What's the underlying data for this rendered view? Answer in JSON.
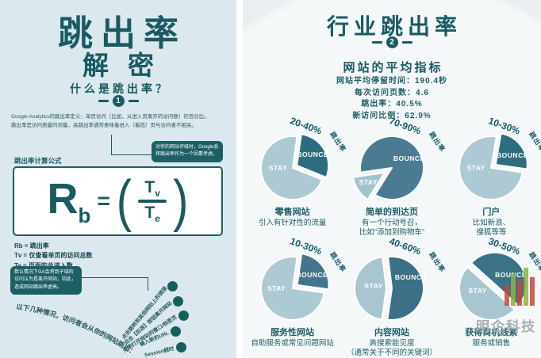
{
  "left": {
    "title_line1": "跳出率",
    "title_line2": "解密",
    "section_heading": "什么是跳出率？",
    "section_badge": "1",
    "paragraph": [
      "Google Analytics的跳出率定义：单页访问（比如，从进入页离开的访问数）的百分比。",
      "跳出率是访问质量的测量，高跳出率通常意味着进入（着陆）页与访问者不相关。"
    ],
    "callout_google": "对你的网站评级时，Google会将跳出率作为一个因素考虑。",
    "formula_label": "跳出率计算公式",
    "formula": {
      "lhs": "R",
      "lhs_sub": "b",
      "equals": "=",
      "paren_open": "(",
      "paren_close": ")",
      "num": "T",
      "num_sub": "v",
      "den": "T",
      "den_sub": "e"
    },
    "legend": [
      "Rb = 跳出率",
      "Tv = 仅查看单页的访问总数",
      "Te = 页面的总进入数"
    ],
    "callout_subdomain": "默认情况下GA会将到子域的访问认为是离开网站，因此，造成网站跳出率虚高。",
    "arc_text": "以下几种情况，访问者会从你的网站跳出：",
    "exit_reasons": [
      "点击跳转到其他网站上的链接",
      "点击【后退】按钮离开网站",
      "关闭打开网站的窗口/标签页",
      "输入新的URL",
      "Session超时"
    ]
  },
  "right": {
    "title": "行业跳出率",
    "badge": "2",
    "subtitle": "网站的平均指标",
    "stats": [
      "网站平均停留时间：190.4秒",
      "每次访问页数：4.6",
      "跳出率：40.5%",
      "新访问比例：62.9%"
    ]
  },
  "chart_data": [
    {
      "type": "pie",
      "title": "零售网站",
      "desc": [
        "引入有针对性的流量"
      ],
      "bounce_rate_range": "20-40%",
      "suffix": "跳出率",
      "slices": [
        {
          "label": "BOUNCE",
          "value": 29,
          "color": "#2d6c80"
        },
        {
          "label": "STAY",
          "value": 71,
          "color": "#adc9d3"
        }
      ],
      "geom": {
        "bounce": {
          "start": 8,
          "end": 112,
          "offset": 6,
          "dir": 60,
          "label_pos": [
            56,
            27
          ]
        },
        "stay": {
          "offset": 0,
          "dir": 0,
          "label_pos": [
            19,
            45
          ]
        }
      }
    },
    {
      "type": "pie",
      "title": "简单的到达页",
      "desc": [
        "有一个行动号召，",
        "比如“添加到购物车”"
      ],
      "bounce_rate_range": "70-90%",
      "suffix": "跳出率",
      "slices": [
        {
          "label": "BOUNCE",
          "value": 86,
          "color": "#4a7b92"
        },
        {
          "label": "STAY",
          "value": 14,
          "color": "#a5c3cf"
        }
      ],
      "geom": {
        "bounce": {
          "start": 262,
          "end": 572,
          "offset": 0,
          "dir": 0,
          "label_pos": [
            52,
            32
          ]
        },
        "stay": {
          "start": 212,
          "end": 262,
          "offset": 11,
          "dir": 237,
          "label_pos": [
            7,
            64
          ]
        }
      }
    },
    {
      "type": "pie",
      "title": "门户",
      "desc": [
        "比如新浪、",
        "搜狐等等"
      ],
      "bounce_rate_range": "10-30%",
      "suffix": "跳出率",
      "slices": [
        {
          "label": "BOUNCE",
          "value": 24,
          "color": "#2e6d80"
        },
        {
          "label": "STAY",
          "value": 76,
          "color": "#adc9d3"
        }
      ],
      "geom": {
        "bounce": {
          "start": 10,
          "end": 98,
          "offset": 7,
          "dir": 54,
          "label_pos": [
            57,
            28
          ]
        },
        "stay": {
          "offset": 0,
          "dir": 0,
          "label_pos": [
            18,
            45
          ]
        }
      }
    },
    {
      "type": "pie",
      "title": "服务性网站",
      "desc": [
        "自助服务或常见问题网站"
      ],
      "bounce_rate_range": "10-30%",
      "suffix": "跳出率",
      "slices": [
        {
          "label": "BOUNCE",
          "value": 25,
          "color": "#44758c"
        },
        {
          "label": "STAY",
          "value": 75,
          "color": "#adc9d3"
        }
      ],
      "geom": {
        "bounce": {
          "start": 8,
          "end": 98,
          "offset": 7,
          "dir": 53,
          "label_pos": [
            55,
            27
          ]
        },
        "stay": {
          "offset": 0,
          "dir": 0,
          "label_pos": [
            17,
            45
          ]
        }
      }
    },
    {
      "type": "pie",
      "title": "内容网站",
      "desc": [
        "高搜索能见度",
        "（通常关于不同的关键词）"
      ],
      "bounce_rate_range": "40-60%",
      "suffix": "跳出率",
      "slices": [
        {
          "label": "BOUNCE",
          "value": 54,
          "color": "#3b7087"
        },
        {
          "label": "STAY",
          "value": 46,
          "color": "#a9c6d0"
        }
      ],
      "geom": {
        "bounce": {
          "start": 353,
          "end": 548,
          "offset": 0,
          "dir": 0,
          "label_pos": [
            54,
            30
          ]
        },
        "stay": {
          "start": 188,
          "end": 353,
          "offset": 7,
          "dir": 270,
          "label_pos": [
            14,
            42
          ]
        }
      }
    },
    {
      "type": "pie",
      "title": "获得商机线索",
      "desc": [
        "服务或销售"
      ],
      "bounce_rate_range": "30-50%",
      "suffix": "跳出率",
      "slices": [
        {
          "label": "BOUNCE",
          "value": 50,
          "color": "#3b7288"
        },
        {
          "label": "STAY",
          "value": 50,
          "color": "#a9c6d0"
        }
      ],
      "geom": {
        "bounce": {
          "start": 312,
          "end": 492,
          "offset": 7,
          "dir": 42,
          "label_pos": [
            55,
            27
          ]
        },
        "stay": {
          "offset": 0,
          "dir": 0,
          "label_pos": [
            20,
            48
          ]
        }
      }
    }
  ],
  "watermark": {
    "text": "明企科技"
  }
}
